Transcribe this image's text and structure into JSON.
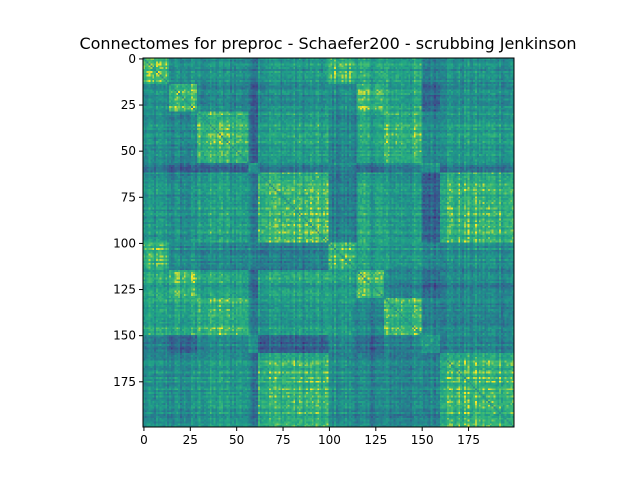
{
  "chart_data": {
    "type": "heatmap",
    "title": "Connectomes for preproc - Schaefer200 - scrubbing Jenkinson",
    "xlabel": "",
    "ylabel": "",
    "matrix_size": 200,
    "x_ticks": [
      0,
      25,
      50,
      75,
      100,
      125,
      150,
      175
    ],
    "y_ticks": [
      0,
      25,
      50,
      75,
      100,
      125,
      150,
      175
    ],
    "xlim": [
      -0.5,
      199.5
    ],
    "ylim": [
      199.5,
      -0.5
    ],
    "colormap": "viridis",
    "diagonal_color": "#2a8f8a",
    "network_blocks": [
      {
        "start": 0,
        "end": 14
      },
      {
        "start": 14,
        "end": 29
      },
      {
        "start": 29,
        "end": 57
      },
      {
        "start": 57,
        "end": 62
      },
      {
        "start": 62,
        "end": 100
      },
      {
        "start": 100,
        "end": 115
      },
      {
        "start": 115,
        "end": 130
      },
      {
        "start": 130,
        "end": 150
      },
      {
        "start": 150,
        "end": 160
      },
      {
        "start": 160,
        "end": 200
      }
    ],
    "grid": false,
    "legend": "none"
  }
}
